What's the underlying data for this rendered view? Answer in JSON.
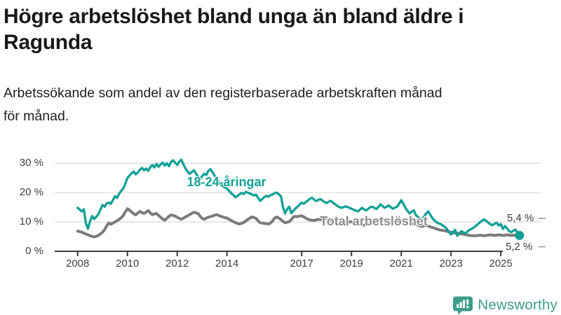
{
  "header": {
    "title_lines": [
      "Högre arbetslöshet bland unga än bland äldre i",
      "Ragunda"
    ],
    "subtitle_lines": [
      "Arbetssökande som andel av den registerbaserade arbetskraften månad",
      "för månad."
    ]
  },
  "chart_data": {
    "type": "line",
    "title": "Högre arbetslöshet bland unga än bland äldre i Ragunda",
    "subtitle": "Arbetssökande som andel av den registerbaserade arbetskraften månad för månad.",
    "unit": "%",
    "x_start_year": 2008,
    "points_per_year": 12,
    "x_tick_years": [
      2008,
      2010,
      2012,
      2014,
      2017,
      2019,
      2021,
      2023,
      2025
    ],
    "y_ticks": [
      0,
      10,
      20,
      30
    ],
    "y_tick_suffix": " %",
    "ylim": [
      0,
      33
    ],
    "grid": true,
    "grid_color": "#dcdcdc",
    "axis_color": "#3a3a3a",
    "tick_label_color": "#3f3f3f",
    "series": [
      {
        "name": "18-24-åringar",
        "color": "#12A096",
        "end_label": "5,4 %",
        "end_value": 5.4,
        "values": [
          14.8,
          14.2,
          13.6,
          14.3,
          9.5,
          7.7,
          10.2,
          12.0,
          11.0,
          11.8,
          12.6,
          14.2,
          15.8,
          15.2,
          16.3,
          16.6,
          16.2,
          17.4,
          18.8,
          18.2,
          19.6,
          20.6,
          21.4,
          23.0,
          25.0,
          25.8,
          26.6,
          27.2,
          26.2,
          26.8,
          27.8,
          28.4,
          27.6,
          28.2,
          27.4,
          28.6,
          29.4,
          28.6,
          29.8,
          28.8,
          29.6,
          30.2,
          29.2,
          30.0,
          29.0,
          30.4,
          31.0,
          30.2,
          29.4,
          30.6,
          31.2,
          29.6,
          28.2,
          27.2,
          26.4,
          27.0,
          27.6,
          26.6,
          25.4,
          24.6,
          25.6,
          26.4,
          26.0,
          27.4,
          28.0,
          27.0,
          25.8,
          24.6,
          23.8,
          22.8,
          22.2,
          21.8,
          21.4,
          20.6,
          19.8,
          19.2,
          18.4,
          18.8,
          19.4,
          19.9,
          19.5,
          20.2,
          20.0,
          19.7,
          19.4,
          19.0,
          19.3,
          18.2,
          17.2,
          17.8,
          18.5,
          18.9,
          18.6,
          19.1,
          19.4,
          19.8,
          20.0,
          19.4,
          18.8,
          15.0,
          12.9,
          14.4,
          15.2,
          13.0,
          13.8,
          14.6,
          15.2,
          15.9,
          16.6,
          16.2,
          16.8,
          17.3,
          17.9,
          18.3,
          17.6,
          17.1,
          17.5,
          17.8,
          17.3,
          16.8,
          16.4,
          16.9,
          17.2,
          16.6,
          16.1,
          15.6,
          15.1,
          14.8,
          15.0,
          15.3,
          15.1,
          14.8,
          14.5,
          14.2,
          13.9,
          13.6,
          14.1,
          14.8,
          14.3,
          13.9,
          14.4,
          15.0,
          15.2,
          14.8,
          14.4,
          15.1,
          16.0,
          15.4,
          14.8,
          15.2,
          15.6,
          15.0,
          14.5,
          14.9,
          15.2,
          16.2,
          17.4,
          16.2,
          14.8,
          13.8,
          12.9,
          13.5,
          14.0,
          12.4,
          11.7,
          11.2,
          10.9,
          11.8,
          12.9,
          13.6,
          12.4,
          11.3,
          10.5,
          9.9,
          9.5,
          9.3,
          8.8,
          8.3,
          7.6,
          6.6,
          5.7,
          6.6,
          7.3,
          5.3,
          6.1,
          6.9,
          6.4,
          6.1,
          6.8,
          7.3,
          7.7,
          8.1,
          8.7,
          9.3,
          9.9,
          10.5,
          10.9,
          10.3,
          9.7,
          9.2,
          8.9,
          9.4,
          9.7,
          8.8,
          9.3,
          7.6,
          8.6,
          7.8,
          6.9,
          6.5,
          7.0,
          7.4,
          6.4,
          5.4
        ]
      },
      {
        "name": "Total arbetslöshet",
        "color": "#7b7b7b",
        "label_color": "#8c8c8c",
        "end_label": "5,2 %",
        "end_value": 5.2,
        "values": [
          6.9,
          6.7,
          6.5,
          6.2,
          5.9,
          5.6,
          5.3,
          5.1,
          4.9,
          5.1,
          5.4,
          5.9,
          6.5,
          7.4,
          8.6,
          9.6,
          9.2,
          9.6,
          10.0,
          10.4,
          10.9,
          11.4,
          12.2,
          13.4,
          14.5,
          14.0,
          13.4,
          12.8,
          12.4,
          13.0,
          13.6,
          13.2,
          12.9,
          13.3,
          13.9,
          13.1,
          12.5,
          12.7,
          12.9,
          12.2,
          11.6,
          11.0,
          10.6,
          11.2,
          11.9,
          12.4,
          12.2,
          12.0,
          11.6,
          11.2,
          10.9,
          11.3,
          11.7,
          12.1,
          12.5,
          12.9,
          13.3,
          13.1,
          12.9,
          12.0,
          11.2,
          10.9,
          11.3,
          11.6,
          11.8,
          12.0,
          12.3,
          12.5,
          12.2,
          11.9,
          11.7,
          11.5,
          11.3,
          10.9,
          10.5,
          10.1,
          9.8,
          9.5,
          9.3,
          9.5,
          9.8,
          10.3,
          10.8,
          11.3,
          11.7,
          11.5,
          11.2,
          10.4,
          9.7,
          9.6,
          9.5,
          9.4,
          9.3,
          9.6,
          10.4,
          11.3,
          11.7,
          11.3,
          10.8,
          10.2,
          9.7,
          9.9,
          10.1,
          10.8,
          11.7,
          11.9,
          11.8,
          12.0,
          12.1,
          11.7,
          11.3,
          10.9,
          10.7,
          10.6,
          10.5,
          10.7,
          10.9,
          10.8,
          10.9,
          11.1,
          11.2,
          10.9,
          10.5,
          10.1,
          9.8,
          9.5,
          9.4,
          9.5,
          9.7,
          9.8,
          9.9,
          10.0,
          10.1,
          9.9,
          9.6,
          9.3,
          9.1,
          9.0,
          8.9,
          9.0,
          9.2,
          9.3,
          9.5,
          9.6,
          9.7,
          10.1,
          10.6,
          10.9,
          10.7,
          10.6,
          10.5,
          10.3,
          10.2,
          10.1,
          10.2,
          10.4,
          10.5,
          10.3,
          10.0,
          9.7,
          9.5,
          9.4,
          9.3,
          9.1,
          8.9,
          8.6,
          8.5,
          8.7,
          8.9,
          8.6,
          8.3,
          8.1,
          7.9,
          7.6,
          7.4,
          7.2,
          7.1,
          7.0,
          6.8,
          6.6,
          6.5,
          6.3,
          6.2,
          6.1,
          6.0,
          5.9,
          5.8,
          5.7,
          5.5,
          5.4,
          5.3,
          5.3,
          5.3,
          5.4,
          5.5,
          5.4,
          5.3,
          5.4,
          5.5,
          5.6,
          5.5,
          5.4,
          5.5,
          5.6,
          5.5,
          5.4,
          5.5,
          5.6,
          5.5,
          5.4,
          5.5,
          5.4,
          5.3,
          5.2
        ]
      }
    ]
  },
  "footer": {
    "brand": "Newsworthy",
    "brand_color": "#3E9C8C"
  }
}
